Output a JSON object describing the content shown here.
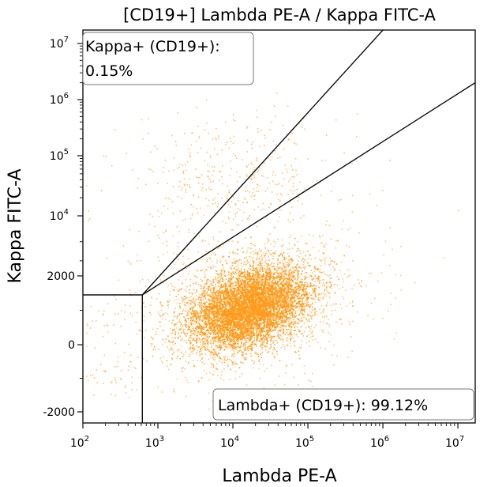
{
  "chart_data": {
    "type": "scatter",
    "title": "[CD19+] Lambda PE-A / Kappa FITC-A",
    "xlabel": "Lambda PE-A",
    "ylabel": "Kappa FITC-A",
    "x_scale": "log",
    "x_range": [
      100,
      17000000
    ],
    "y_scale": "biexponential",
    "y_range": [
      -2300,
      17000000
    ],
    "x_ticks": [
      {
        "value": 100,
        "base": "10",
        "exp": "2"
      },
      {
        "value": 1000,
        "base": "10",
        "exp": "3"
      },
      {
        "value": 10000,
        "base": "10",
        "exp": "4"
      },
      {
        "value": 100000,
        "base": "10",
        "exp": "5"
      },
      {
        "value": 1000000,
        "base": "10",
        "exp": "6"
      },
      {
        "value": 10000000,
        "base": "10",
        "exp": "7"
      }
    ],
    "y_ticks": [
      {
        "value": -2000,
        "label": "-2000"
      },
      {
        "value": 0,
        "label": "0"
      },
      {
        "value": 2000,
        "label": "2000"
      },
      {
        "value": 10000,
        "base": "10",
        "exp": "4"
      },
      {
        "value": 100000,
        "base": "10",
        "exp": "5"
      },
      {
        "value": 1000000,
        "base": "10",
        "exp": "6"
      },
      {
        "value": 10000000,
        "base": "10",
        "exp": "7"
      }
    ],
    "point_color": "#ff9a1a",
    "grid": false,
    "gates": [
      {
        "name": "Kappa+ (CD19+)",
        "value": "0.15%",
        "label_line1": "Kappa+ (CD19+):",
        "label_line2": "0.15%"
      },
      {
        "name": "Lambda+ (CD19+)",
        "value": "99.12%",
        "label": "Lambda+ (CD19+): 99.12%"
      }
    ],
    "gate_vertices": {
      "kappa": [
        [
          100,
          17000000
        ],
        [
          1000000,
          17000000
        ],
        [
          620,
          1450
        ],
        [
          100,
          1450
        ]
      ],
      "lambda": [
        [
          620,
          -2300
        ],
        [
          620,
          1450
        ],
        [
          17000000,
          2000000
        ],
        [
          17000000,
          -2300
        ]
      ]
    },
    "populations": [
      {
        "role": "main lambda+ cluster",
        "center_log10_x": 4.2,
        "center_y": 1100,
        "count": 9000
      },
      {
        "role": "sparse kappa+ events",
        "center_log10_x": 4.0,
        "center_y": 120000,
        "count": 120
      }
    ]
  }
}
